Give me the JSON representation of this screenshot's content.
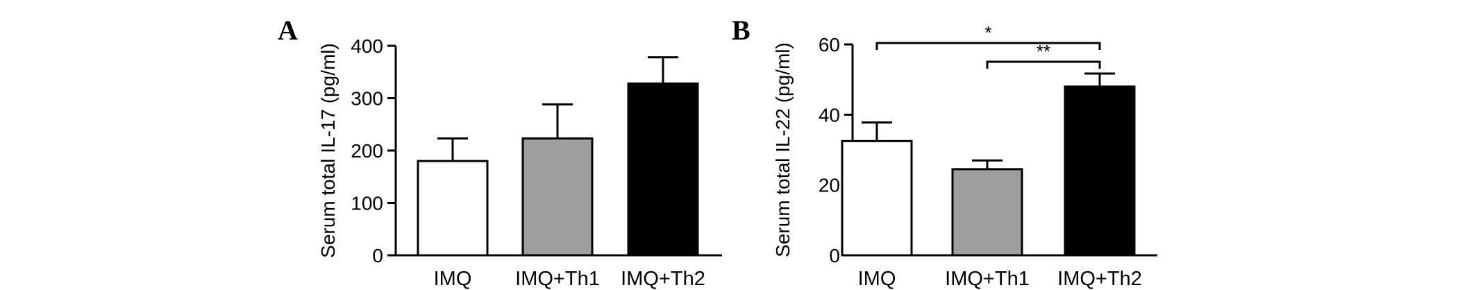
{
  "chart_data": [
    {
      "panel": "A",
      "type": "bar",
      "categories": [
        "IMQ",
        "IMQ+Th1",
        "IMQ+Th2"
      ],
      "values": [
        180,
        223,
        328
      ],
      "errors": [
        43,
        65,
        50
      ],
      "bar_colors": [
        "#ffffff",
        "#9e9e9e",
        "#000000"
      ],
      "ylabel": "Serum total IL-17 (pg/ml)",
      "ylim": [
        0,
        400
      ],
      "yticks": [
        0,
        100,
        200,
        300,
        400
      ],
      "grid": false,
      "significance": []
    },
    {
      "panel": "B",
      "type": "bar",
      "categories": [
        "IMQ",
        "IMQ+Th1",
        "IMQ+Th2"
      ],
      "values": [
        32.5,
        24.5,
        48
      ],
      "errors": [
        5.3,
        2.5,
        3.7
      ],
      "bar_colors": [
        "#ffffff",
        "#9e9e9e",
        "#000000"
      ],
      "ylabel": "Serum total IL-22 (pg/ml)",
      "ylim": [
        0,
        60
      ],
      "yticks": [
        0,
        20,
        40,
        60
      ],
      "grid": false,
      "significance": [
        {
          "from": 0,
          "to": 2,
          "label": "*"
        },
        {
          "from": 1,
          "to": 2,
          "label": "**"
        }
      ]
    }
  ]
}
